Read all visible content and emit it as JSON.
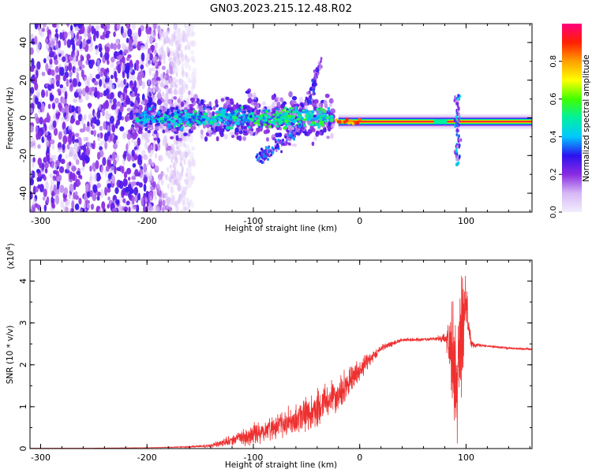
{
  "title": "GN03.2023.215.12.48.R02",
  "chart_data": [
    {
      "type": "heatmap",
      "title": "GN03.2023.215.12.48.R02",
      "xlabel": "Height of straight line (km)",
      "ylabel": "Frequency (Hz)",
      "xlim": [
        -310,
        162
      ],
      "ylim": [
        -50,
        50
      ],
      "xticks": [
        -300,
        -200,
        -100,
        0,
        100
      ],
      "yticks": [
        -40,
        -20,
        0,
        20,
        40
      ],
      "colorbar": {
        "label": "Normalized spectral amplitude",
        "range": [
          0.0,
          1.0
        ],
        "ticks": [
          0.0,
          0.2,
          0.4,
          0.6,
          0.8
        ],
        "tick_labels": [
          "0.0",
          "0.2",
          "0.4",
          "0.6",
          "0.8"
        ],
        "colormap": [
          "#f2eefc",
          "#d6b8f6",
          "#8a2be2",
          "#2b12f0",
          "#00c8ff",
          "#00f0a0",
          "#40ff00",
          "#ffff00",
          "#ffa000",
          "#ff2000",
          "#ff0080"
        ]
      },
      "features": [
        {
          "name": "tone",
          "x_range": [
            -20,
            162
          ],
          "freq": -2,
          "amplitude": 0.9
        },
        {
          "name": "broadband spread",
          "x_range": [
            -310,
            -165
          ],
          "freq_range": [
            -50,
            50
          ],
          "amplitude": 0.25
        },
        {
          "name": "central band",
          "x_range": [
            -215,
            -25
          ],
          "freq": 0,
          "amplitude": 0.4
        },
        {
          "name": "upper arc",
          "x_range": [
            -50,
            -37
          ],
          "freq_range": [
            5,
            30
          ],
          "amplitude": 0.3
        },
        {
          "name": "lower arc",
          "x_range": [
            -95,
            -55
          ],
          "freq_range": [
            -22,
            -5
          ],
          "amplitude": 0.35
        },
        {
          "name": "spike",
          "x": 92,
          "freq_range": [
            -25,
            12
          ],
          "amplitude": 0.4
        }
      ]
    },
    {
      "type": "line",
      "xlabel": "Height of straight line (km)",
      "ylabel": "SNR (10 * v/v)",
      "y_multiplier": "(x10",
      "y_multiplier_exp": "4",
      "y_multiplier_close": ")",
      "xlim": [
        -310,
        162
      ],
      "ylim": [
        0,
        4.5
      ],
      "xticks": [
        -300,
        -200,
        -100,
        0,
        100
      ],
      "yticks": [
        0,
        1,
        2,
        3,
        4
      ],
      "color": "#ee3030",
      "series": [
        {
          "x": [
            -310,
            -250,
            -200,
            -160,
            -140,
            -120,
            -100,
            -80,
            -60,
            -40,
            -20,
            0,
            20,
            40,
            60,
            70,
            80,
            85,
            90,
            95,
            100,
            105,
            110,
            120,
            140,
            162
          ],
          "y": [
            0.01,
            0.01,
            0.02,
            0.04,
            0.07,
            0.2,
            0.35,
            0.5,
            0.7,
            0.95,
            1.3,
            1.9,
            2.4,
            2.6,
            2.6,
            2.62,
            2.62,
            2.6,
            1.8,
            2.6,
            3.5,
            2.5,
            2.47,
            2.45,
            2.4,
            2.37
          ],
          "noise_amplitude": [
            0,
            0,
            0,
            0.02,
            0.05,
            0.15,
            0.3,
            0.35,
            0.5,
            0.55,
            0.5,
            0.3,
            0.12,
            0.05,
            0.05,
            0.05,
            0.15,
            0.8,
            2.5,
            2.0,
            0.7,
            0.15,
            0.05,
            0.03,
            0.03,
            0.03
          ]
        }
      ]
    }
  ]
}
